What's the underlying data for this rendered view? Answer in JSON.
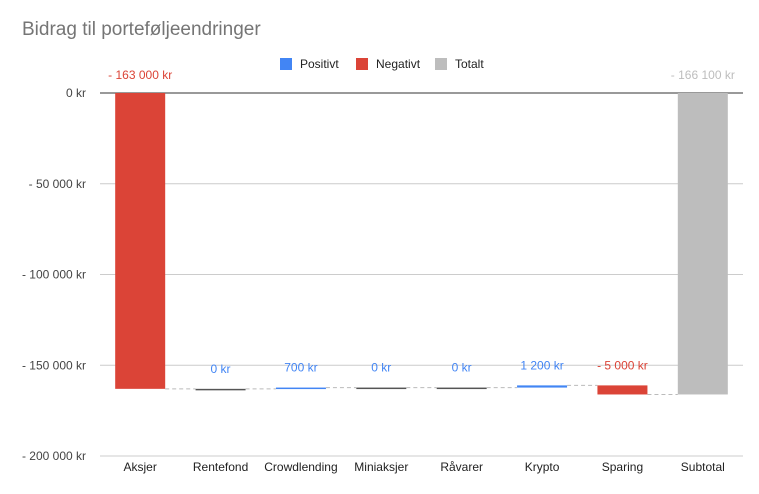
{
  "chart_data": {
    "type": "bar",
    "subtype": "waterfall",
    "title": "Bidrag til porteføljeendringer",
    "categories": [
      "Aksjer",
      "Rentefond",
      "Crowdlending",
      "Miniaksjer",
      "Råvarer",
      "Krypto",
      "Sparing",
      "Subtotal"
    ],
    "values": [
      -163000,
      0,
      700,
      0,
      0,
      1200,
      -5000,
      -166100
    ],
    "labels": [
      "- 163 000 kr",
      "0 kr",
      "700 kr",
      "0 kr",
      "0 kr",
      "1 200 kr",
      "- 5 000 kr",
      "- 166 100 kr"
    ],
    "kinds": [
      "negative",
      "positive",
      "positive",
      "positive",
      "positive",
      "positive",
      "negative",
      "total"
    ],
    "ylim": [
      -200000,
      0
    ],
    "yticks": [
      0,
      -50000,
      -100000,
      -150000,
      -200000
    ],
    "ytick_labels": [
      "0 kr",
      "- 50 000 kr",
      "- 100 000 kr",
      "- 150 000 kr",
      "- 200 000 kr"
    ],
    "legend": [
      {
        "name": "Positivt",
        "color": "#4285f4"
      },
      {
        "name": "Negativt",
        "color": "#db4437"
      },
      {
        "name": "Totalt",
        "color": "#bdbdbd"
      }
    ],
    "legend_position": "top",
    "colors": {
      "positive": "#4285f4",
      "negative": "#db4437",
      "total": "#bdbdbd"
    },
    "grid": true
  }
}
